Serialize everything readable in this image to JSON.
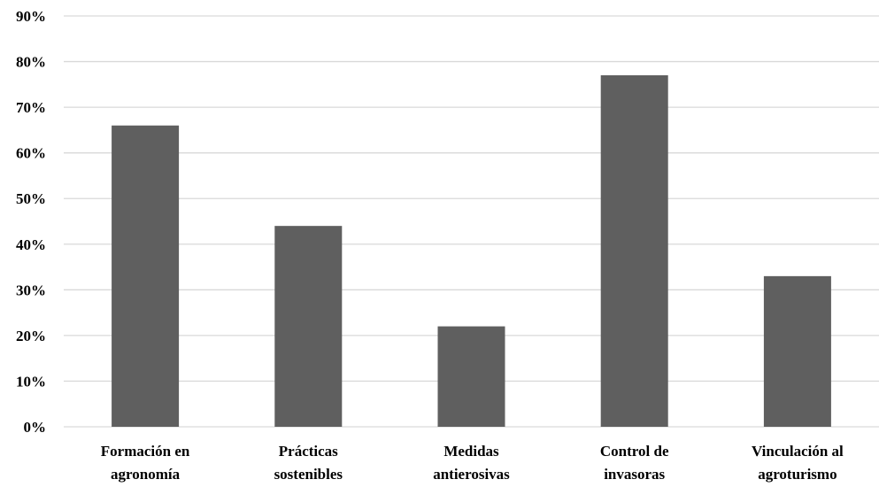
{
  "chart_data": {
    "type": "bar",
    "title": "",
    "xlabel": "",
    "ylabel": "",
    "categories": [
      [
        "Formación en",
        "agronomía"
      ],
      [
        "Prácticas",
        "sostenibles"
      ],
      [
        "Medidas",
        "antierosivas"
      ],
      [
        "Control de",
        "invasoras"
      ],
      [
        "Vinculación al",
        "agroturismo"
      ]
    ],
    "values": [
      66,
      44,
      22,
      77,
      33
    ],
    "value_unit": "%",
    "ylim": [
      0,
      90
    ],
    "yticks": [
      "0%",
      "10%",
      "20%",
      "30%",
      "40%",
      "50%",
      "60%",
      "70%",
      "80%",
      "90%"
    ],
    "grid": true,
    "legend": "none",
    "bar_color": "#5f5f5f",
    "grid_color": "#d9d9d9"
  }
}
